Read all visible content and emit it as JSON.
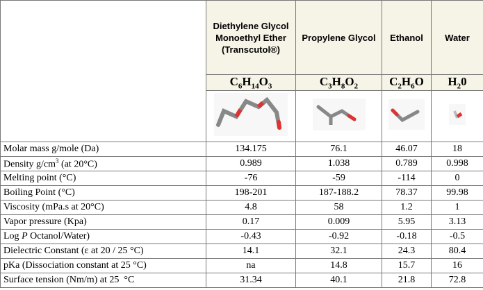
{
  "table": {
    "columns": [
      {
        "name": "Diethylene Glycol Monoethyl Ether (Transcutol®)",
        "formula": [
          "C",
          "6",
          "H",
          "14",
          "O",
          "3"
        ]
      },
      {
        "name": "Propylene Glycol",
        "formula": [
          "C",
          "3",
          "H",
          "8",
          "O",
          "2"
        ]
      },
      {
        "name": "Ethanol",
        "formula": [
          "C",
          "2",
          "H",
          "6",
          "O"
        ]
      },
      {
        "name": "Water",
        "formula": [
          "H",
          "2",
          "0"
        ]
      }
    ],
    "rows": [
      {
        "label": [
          {
            "text": "Molar mass g/mole (Da)"
          }
        ],
        "values": [
          "134.175",
          "76.1",
          "46.07",
          "18"
        ]
      },
      {
        "label": [
          {
            "text": "Density g/cm"
          },
          {
            "text": "3",
            "sup": true
          },
          {
            "text": " (at 20°C)"
          }
        ],
        "values": [
          "0.989",
          "1.038",
          "0.789",
          "0.998"
        ]
      },
      {
        "label": [
          {
            "text": "Melting point (°C)"
          }
        ],
        "values": [
          "-76",
          "-59",
          "-114",
          "0"
        ]
      },
      {
        "label": [
          {
            "text": "Boiling Point (°C)"
          }
        ],
        "values": [
          "198-201",
          "187-188.2",
          "78.37",
          "99.98"
        ]
      },
      {
        "label": [
          {
            "text": "Viscosity (mPa.s at 20°C)"
          }
        ],
        "values": [
          "4.8",
          "58",
          "1.2",
          "1"
        ]
      },
      {
        "label": [
          {
            "text": "Vapor pressure (Kpa)"
          }
        ],
        "values": [
          "0.17",
          "0.009",
          "5.95",
          "3.13"
        ]
      },
      {
        "label": [
          {
            "text": "Log "
          },
          {
            "text": "P",
            "italic": true
          },
          {
            "text": " Octanol/Water)"
          }
        ],
        "values": [
          "-0.43",
          "-0.92",
          "-0.18",
          "-0.5"
        ]
      },
      {
        "label": [
          {
            "text": "Dielectric Constant (ε at 20 / 25 °C)"
          }
        ],
        "values": [
          "14.1",
          "32.1",
          "24.3",
          "80.4"
        ]
      },
      {
        "label": [
          {
            "text": "pKa (Dissociation constant at 25 °C)"
          }
        ],
        "values": [
          "na",
          "14.8",
          "15.7",
          "16"
        ]
      },
      {
        "label": [
          {
            "text": "Surface tension (Nm/m) at 25  °C"
          }
        ],
        "values": [
          "31.34",
          "40.1",
          "21.8",
          "72.8"
        ]
      }
    ]
  }
}
